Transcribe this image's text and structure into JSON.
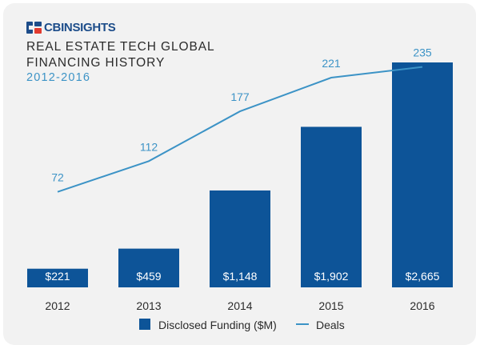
{
  "brand": {
    "name": "CBINSIGHTS",
    "logo_icon": "cbinsights-logo-icon"
  },
  "header": {
    "title_line1": "REAL ESTATE TECH GLOBAL",
    "title_line2": "FINANCING HISTORY",
    "subtitle": "2012-2016"
  },
  "colors": {
    "bar": "#0d5498",
    "line": "#3c93c6",
    "background": "#f2f2f2"
  },
  "chart_data": {
    "type": "bar",
    "categories": [
      "2012",
      "2013",
      "2014",
      "2015",
      "2016"
    ],
    "series": [
      {
        "name": "Disclosed Funding ($M)",
        "type": "bar",
        "values": [
          221,
          459,
          1148,
          1902,
          2665
        ],
        "labels": [
          "$221",
          "$459",
          "$1,148",
          "$1,902",
          "$2,665"
        ]
      },
      {
        "name": "Deals",
        "type": "line",
        "values": [
          72,
          112,
          177,
          221,
          235
        ],
        "labels": [
          "72",
          "112",
          "177",
          "221",
          "235"
        ]
      }
    ],
    "legend_position": "bottom",
    "grid": false
  }
}
